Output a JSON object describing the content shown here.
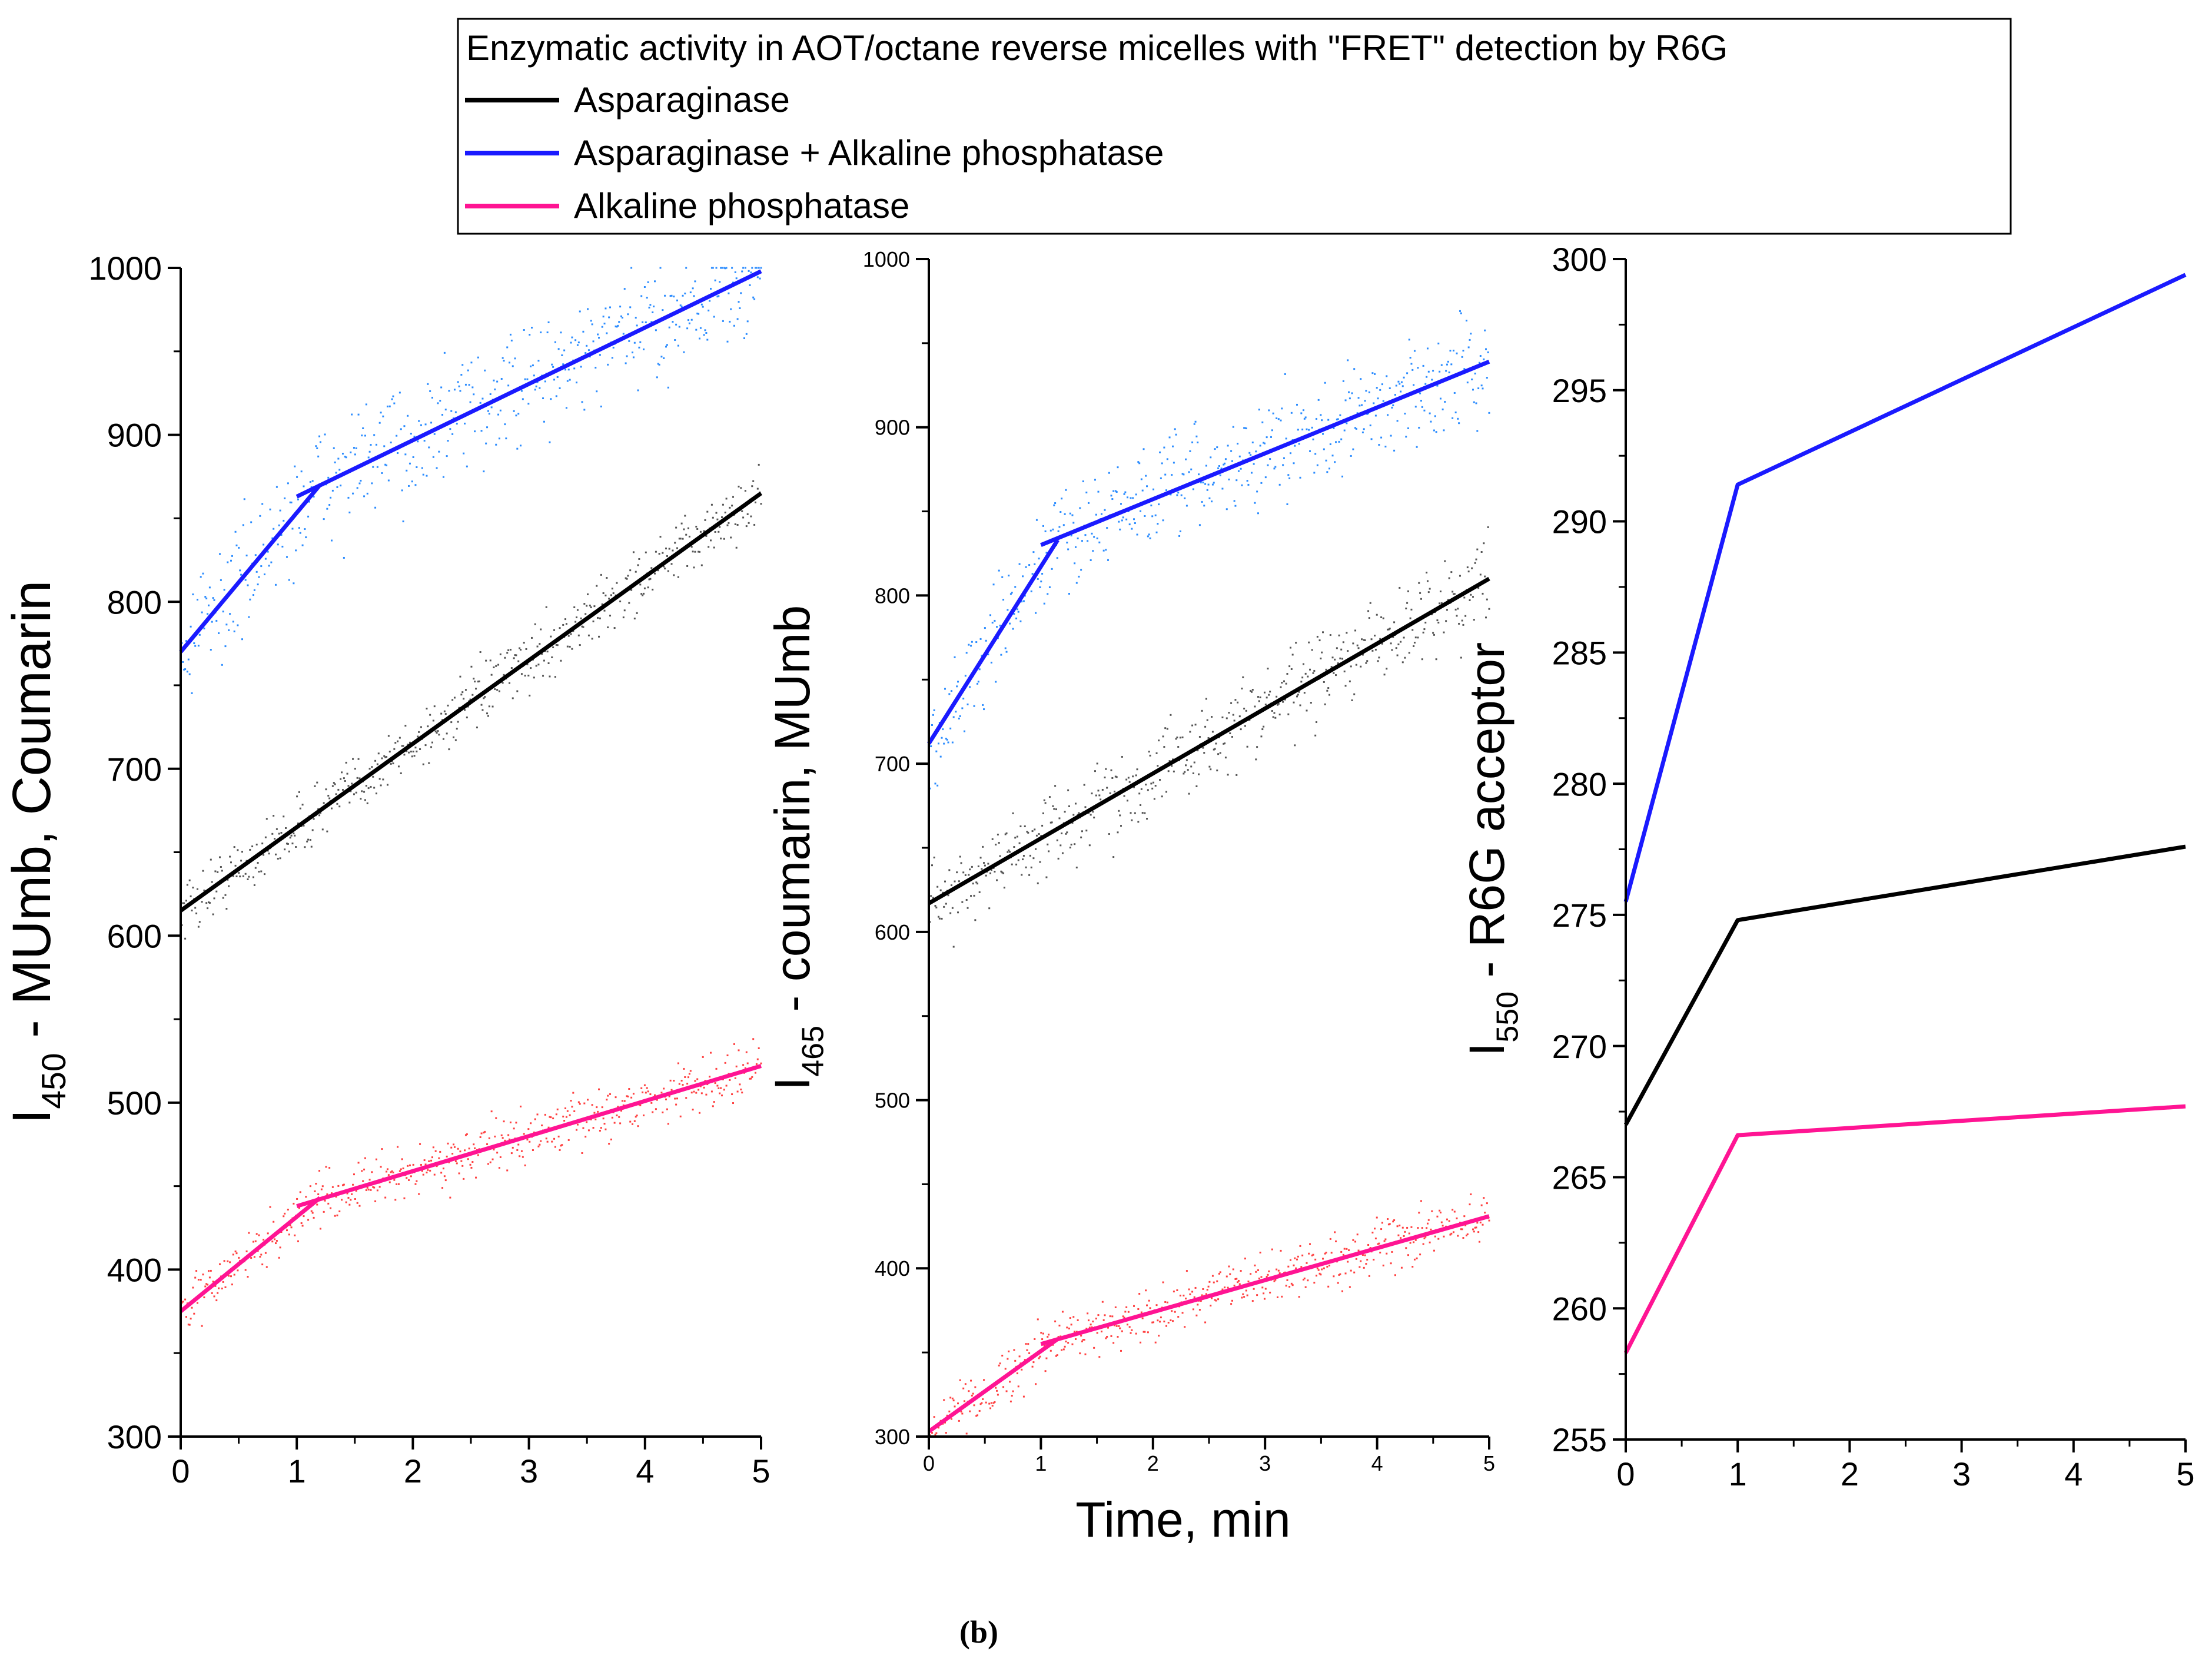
{
  "legend": {
    "title": "Enzymatic activity in AOT/octane reverse micelles with \"FRET\" detection by R6G",
    "entries": [
      {
        "label": "Asparaginase",
        "color": "#000000"
      },
      {
        "label": "Asparaginase + Alkaline phosphatase",
        "color": "#1a1aff"
      },
      {
        "label": "Alkaline phosphatase",
        "color": "#ff1493"
      }
    ]
  },
  "shared_xlabel": "Time, min",
  "caption": "(b)",
  "chart_data": [
    {
      "type": "line",
      "ylabel_main": "I",
      "ylabel_sub": "450",
      "ylabel_rest": " - MUmb, Coumarin",
      "xlim": [
        0,
        5
      ],
      "ylim": [
        300,
        1000
      ],
      "xticks": [
        0,
        1,
        2,
        3,
        4,
        5
      ],
      "yticks": [
        300,
        400,
        500,
        600,
        700,
        800,
        900,
        1000
      ],
      "series": [
        {
          "color": "#000000",
          "scatter_color": "#555555",
          "x": [
            0,
            5
          ],
          "y": [
            615,
            865
          ],
          "noise": 18
        },
        {
          "color": "#1a1aff",
          "scatter_color": "#2b8cff",
          "segments": [
            {
              "x": [
                0,
                1.2
              ],
              "y": [
                770,
                870
              ]
            },
            {
              "x": [
                1,
                5
              ],
              "y": [
                863,
                998
              ]
            }
          ],
          "noise": 35
        },
        {
          "color": "#ff1493",
          "scatter_color": "#ff4040",
          "segments": [
            {
              "x": [
                0,
                1.2
              ],
              "y": [
                375,
                443
              ]
            },
            {
              "x": [
                1,
                5
              ],
              "y": [
                438,
                522
              ]
            }
          ],
          "noise": 15
        }
      ]
    },
    {
      "type": "line",
      "ylabel_main": "I",
      "ylabel_sub": "465",
      "ylabel_rest": " - coumarin, MUmb",
      "xlim": [
        0,
        5
      ],
      "ylim": [
        300,
        1000
      ],
      "xticks": [
        0,
        1,
        2,
        3,
        4,
        5
      ],
      "yticks": [
        300,
        400,
        500,
        600,
        700,
        800,
        900,
        1000
      ],
      "series": [
        {
          "color": "#000000",
          "scatter_color": "#555555",
          "x": [
            0,
            5
          ],
          "y": [
            617,
            810
          ],
          "noise": 25
        },
        {
          "color": "#1a1aff",
          "scatter_color": "#2b8cff",
          "segments": [
            {
              "x": [
                0,
                1.15
              ],
              "y": [
                712,
                833
              ]
            },
            {
              "x": [
                1,
                5
              ],
              "y": [
                830,
                939
              ]
            }
          ],
          "noise": 30
        },
        {
          "color": "#ff1493",
          "scatter_color": "#ff4040",
          "segments": [
            {
              "x": [
                0,
                1.15
              ],
              "y": [
                303,
                358
              ]
            },
            {
              "x": [
                1,
                5
              ],
              "y": [
                355,
                431
              ]
            }
          ],
          "noise": 15
        }
      ]
    },
    {
      "type": "line",
      "ylabel_main": "I",
      "ylabel_sub": "550",
      "ylabel_rest": " - R6G acceptor",
      "xlim": [
        0,
        5
      ],
      "ylim": [
        255,
        300
      ],
      "xticks": [
        0,
        1,
        2,
        3,
        4,
        5
      ],
      "yticks": [
        255,
        260,
        265,
        270,
        275,
        280,
        285,
        290,
        295,
        300
      ],
      "series": [
        {
          "color": "#1a1aff",
          "x": [
            0,
            1,
            5
          ],
          "y": [
            275.5,
            291.4,
            299.4
          ]
        },
        {
          "color": "#000000",
          "x": [
            0,
            1,
            5
          ],
          "y": [
            267,
            274.8,
            277.6
          ]
        },
        {
          "color": "#ff1493",
          "x": [
            0,
            1,
            5
          ],
          "y": [
            258.3,
            266.6,
            267.7
          ]
        }
      ]
    }
  ]
}
